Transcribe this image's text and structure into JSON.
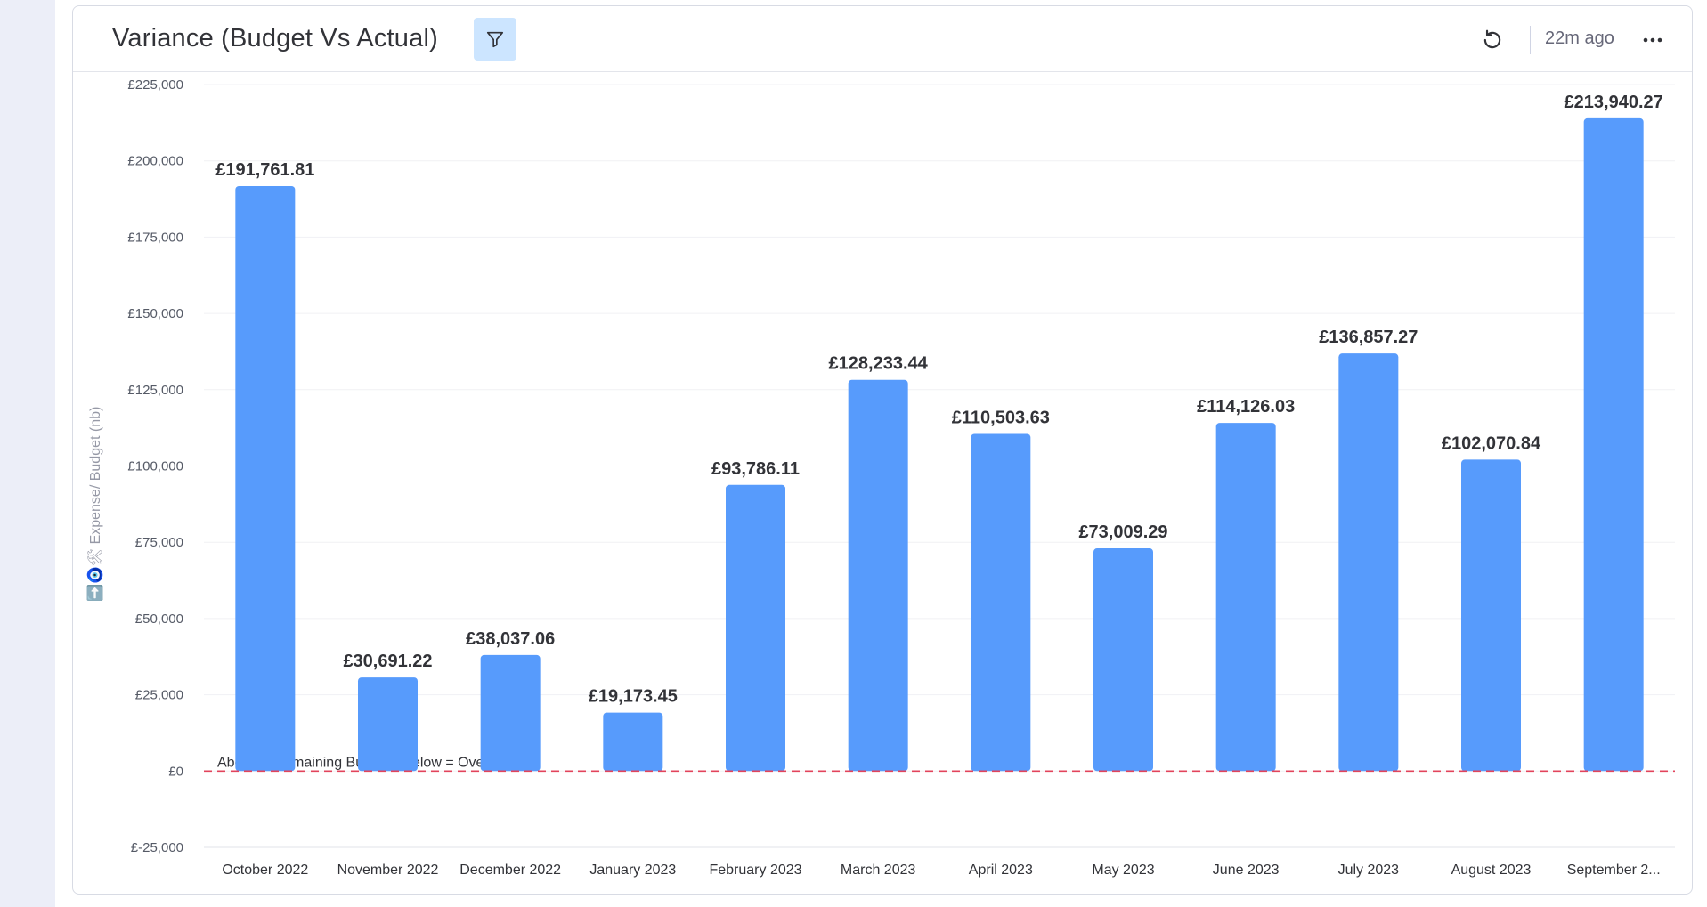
{
  "widget": {
    "title": "Variance (Budget Vs Actual)",
    "updated": "22m ago",
    "icons": {
      "filter": "filter-icon",
      "refresh": "refresh-icon",
      "more": "more-options-icon"
    }
  },
  "chart_data": {
    "type": "bar",
    "title": "Variance (Budget Vs Actual)",
    "xlabel": "",
    "ylabel": "➡️🧿🛠 Expense/ Budget (nb)",
    "ylim": [
      -25000,
      225000
    ],
    "yticks": [
      "£-25,000",
      "£0",
      "£25,000",
      "£50,000",
      "£75,000",
      "£100,000",
      "£125,000",
      "£150,000",
      "£175,000",
      "£200,000",
      "£225,000"
    ],
    "ytick_values": [
      -25000,
      0,
      25000,
      50000,
      75000,
      100000,
      125000,
      150000,
      175000,
      200000,
      225000
    ],
    "categories": [
      "October 2022",
      "November 2022",
      "December 2022",
      "January 2023",
      "February 2023",
      "March 2023",
      "April 2023",
      "May 2023",
      "June 2023",
      "July 2023",
      "August 2023",
      "September 2..."
    ],
    "values": [
      191761.81,
      30691.22,
      38037.06,
      19173.45,
      93786.11,
      128233.44,
      110503.63,
      73009.29,
      114126.03,
      136857.27,
      102070.84,
      213940.27
    ],
    "data_labels": [
      "£191,761.81",
      "£30,691.22",
      "£38,037.06",
      "£19,173.45",
      "£93,786.11",
      "£128,233.44",
      "£110,503.63",
      "£73,009.29",
      "£114,126.03",
      "£136,857.27",
      "£102,070.84",
      "£213,940.27"
    ],
    "reference_line": {
      "value": 0,
      "label": "Above = Remaining Budget | Below = Over Budget",
      "color": "#e2445c",
      "style": "dashed"
    },
    "bar_color": "#579bfc",
    "grid": true,
    "legend": "none"
  }
}
